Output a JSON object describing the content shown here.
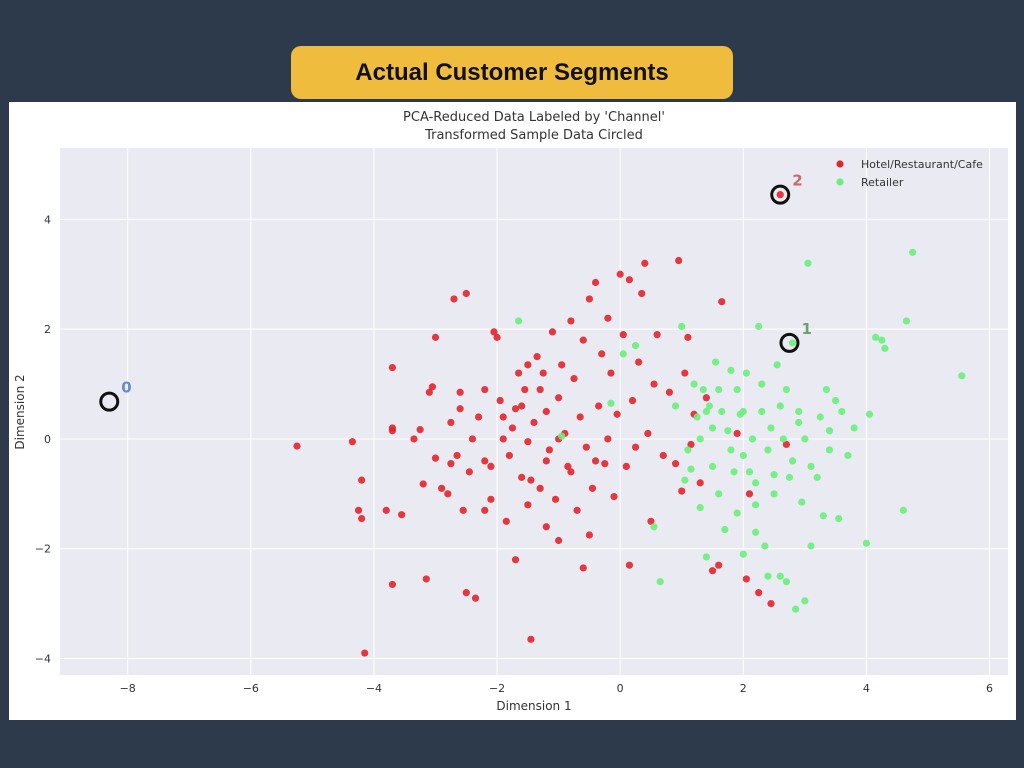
{
  "slide": {
    "banner_title": "Actual Customer Segments"
  },
  "chart_data": {
    "type": "scatter",
    "title": "PCA-Reduced Data Labeled by 'Channel'",
    "subtitle": "Transformed Sample Data Circled",
    "xlabel": "Dimension 1",
    "ylabel": "Dimension 2",
    "xlim": [
      -9.1,
      6.3
    ],
    "ylim": [
      -4.3,
      5.3
    ],
    "xticks": [
      -8,
      -6,
      -4,
      -2,
      0,
      2,
      4,
      6
    ],
    "yticks": [
      -4,
      -2,
      0,
      2,
      4
    ],
    "xtick_labels": [
      "−8",
      "−6",
      "−4",
      "−2",
      "0",
      "2",
      "4",
      "6"
    ],
    "ytick_labels": [
      "−4",
      "−2",
      "0",
      "2",
      "4"
    ],
    "grid": true,
    "legend_position": "top-right",
    "colors": {
      "plot_bg": "#eaeaf2",
      "grid": "#ffffff",
      "hotel": "#e3242b",
      "retailer": "#69ef7b",
      "circle": "#111111",
      "label0": "#6a8cc7",
      "label1": "#6f9f6f",
      "label2": "#c86a6a"
    },
    "series": [
      {
        "name": "Hotel/Restaurant/Cafe",
        "color": "#e3242b",
        "points": [
          [
            -5.25,
            -0.13
          ],
          [
            -4.35,
            -0.05
          ],
          [
            -4.25,
            -1.3
          ],
          [
            -4.2,
            -0.75
          ],
          [
            -4.2,
            -1.45
          ],
          [
            -4.15,
            -3.9
          ],
          [
            -3.8,
            -1.3
          ],
          [
            -3.7,
            1.3
          ],
          [
            -3.7,
            0.2
          ],
          [
            -3.7,
            0.15
          ],
          [
            -3.7,
            -2.65
          ],
          [
            -3.55,
            -1.38
          ],
          [
            -3.35,
            0.0
          ],
          [
            -3.25,
            0.17
          ],
          [
            -3.2,
            -0.82
          ],
          [
            -3.15,
            -2.55
          ],
          [
            -3.1,
            0.85
          ],
          [
            -3.05,
            0.95
          ],
          [
            -3.0,
            1.85
          ],
          [
            -2.9,
            -0.9
          ],
          [
            -2.8,
            -1.0
          ],
          [
            -2.75,
            -0.45
          ],
          [
            -2.75,
            0.3
          ],
          [
            -2.7,
            2.55
          ],
          [
            -2.65,
            -0.3
          ],
          [
            -2.6,
            0.85
          ],
          [
            -2.55,
            -1.3
          ],
          [
            -2.5,
            -2.8
          ],
          [
            -2.5,
            2.65
          ],
          [
            -2.45,
            -0.6
          ],
          [
            -2.4,
            0.0
          ],
          [
            -2.35,
            -2.9
          ],
          [
            -2.3,
            0.4
          ],
          [
            -2.2,
            0.9
          ],
          [
            -2.2,
            -1.3
          ],
          [
            -2.1,
            -0.5
          ],
          [
            -2.05,
            1.95
          ],
          [
            -2.0,
            1.85
          ],
          [
            -1.95,
            0.7
          ],
          [
            -1.9,
            0.0
          ],
          [
            -1.85,
            -1.5
          ],
          [
            -1.8,
            -0.3
          ],
          [
            -1.75,
            0.2
          ],
          [
            -1.7,
            0.55
          ],
          [
            -1.65,
            1.2
          ],
          [
            -1.6,
            0.6
          ],
          [
            -1.55,
            0.9
          ],
          [
            -1.5,
            -0.05
          ],
          [
            -1.5,
            1.35
          ],
          [
            -1.45,
            -0.75
          ],
          [
            -1.45,
            -3.65
          ],
          [
            -1.4,
            0.3
          ],
          [
            -1.35,
            1.5
          ],
          [
            -1.3,
            -0.9
          ],
          [
            -1.25,
            1.2
          ],
          [
            -1.2,
            0.5
          ],
          [
            -1.15,
            -0.2
          ],
          [
            -1.1,
            1.95
          ],
          [
            -1.05,
            -1.1
          ],
          [
            -1.0,
            0.75
          ],
          [
            -0.95,
            1.35
          ],
          [
            -0.9,
            0.1
          ],
          [
            -0.85,
            -0.5
          ],
          [
            -0.8,
            2.15
          ],
          [
            -0.75,
            1.1
          ],
          [
            -0.7,
            -1.3
          ],
          [
            -0.65,
            0.4
          ],
          [
            -0.6,
            1.8
          ],
          [
            -0.55,
            -0.15
          ],
          [
            -0.5,
            2.55
          ],
          [
            -0.45,
            -0.9
          ],
          [
            -0.4,
            2.85
          ],
          [
            -0.35,
            0.6
          ],
          [
            -0.3,
            1.55
          ],
          [
            -0.25,
            -0.45
          ],
          [
            -0.2,
            2.2
          ],
          [
            -0.15,
            1.2
          ],
          [
            -0.1,
            -1.05
          ],
          [
            -0.05,
            0.45
          ],
          [
            0.0,
            3.0
          ],
          [
            0.05,
            1.9
          ],
          [
            0.1,
            -0.5
          ],
          [
            0.15,
            2.9
          ],
          [
            0.2,
            0.7
          ],
          [
            0.25,
            -0.15
          ],
          [
            0.3,
            1.4
          ],
          [
            0.35,
            2.65
          ],
          [
            0.4,
            3.2
          ],
          [
            0.45,
            0.1
          ],
          [
            0.5,
            -1.5
          ],
          [
            0.55,
            1.0
          ],
          [
            0.6,
            1.9
          ],
          [
            0.7,
            -0.3
          ],
          [
            0.8,
            0.85
          ],
          [
            0.9,
            -0.45
          ],
          [
            0.95,
            3.25
          ],
          [
            1.0,
            -0.95
          ],
          [
            1.05,
            1.2
          ],
          [
            1.1,
            1.85
          ],
          [
            1.15,
            -0.1
          ],
          [
            1.2,
            0.45
          ],
          [
            1.3,
            -0.8
          ],
          [
            1.4,
            0.75
          ],
          [
            1.5,
            -2.4
          ],
          [
            1.6,
            -2.3
          ],
          [
            1.65,
            2.5
          ],
          [
            1.9,
            0.1
          ],
          [
            2.05,
            -2.55
          ],
          [
            2.1,
            -1.0
          ],
          [
            2.25,
            -2.8
          ],
          [
            2.45,
            -3.0
          ],
          [
            2.6,
            4.45
          ],
          [
            2.7,
            -0.1
          ],
          [
            -0.2,
            0.0
          ],
          [
            -1.0,
            0.0
          ],
          [
            -2.2,
            -0.4
          ],
          [
            -1.6,
            -0.7
          ],
          [
            -0.8,
            -0.6
          ],
          [
            -1.2,
            -0.4
          ],
          [
            -1.9,
            0.4
          ],
          [
            -0.4,
            -0.4
          ],
          [
            -1.3,
            0.9
          ],
          [
            -2.6,
            0.55
          ],
          [
            -1.7,
            -2.2
          ],
          [
            -0.6,
            -2.35
          ],
          [
            0.15,
            -2.3
          ],
          [
            -1.2,
            -1.6
          ],
          [
            -0.5,
            -1.75
          ],
          [
            -2.1,
            -1.1
          ],
          [
            -1.0,
            -1.85
          ],
          [
            -3.0,
            -0.35
          ],
          [
            -1.5,
            -1.2
          ]
        ]
      },
      {
        "name": "Retailer",
        "color": "#69ef7b",
        "points": [
          [
            -1.65,
            2.15
          ],
          [
            -0.95,
            0.05
          ],
          [
            -0.15,
            0.65
          ],
          [
            0.05,
            1.55
          ],
          [
            0.25,
            1.7
          ],
          [
            0.55,
            -1.6
          ],
          [
            0.65,
            -2.6
          ],
          [
            0.9,
            0.6
          ],
          [
            1.0,
            2.05
          ],
          [
            1.05,
            -0.75
          ],
          [
            1.1,
            -0.2
          ],
          [
            1.15,
            -0.55
          ],
          [
            1.2,
            1.0
          ],
          [
            1.25,
            0.4
          ],
          [
            1.3,
            -1.25
          ],
          [
            1.35,
            0.9
          ],
          [
            1.4,
            -2.15
          ],
          [
            1.45,
            0.6
          ],
          [
            1.5,
            -0.5
          ],
          [
            1.55,
            1.4
          ],
          [
            1.6,
            0.9
          ],
          [
            1.65,
            0.5
          ],
          [
            1.7,
            -1.65
          ],
          [
            1.75,
            0.15
          ],
          [
            1.8,
            1.25
          ],
          [
            1.85,
            -0.6
          ],
          [
            1.9,
            -1.35
          ],
          [
            1.95,
            0.45
          ],
          [
            2.0,
            -2.1
          ],
          [
            2.05,
            1.2
          ],
          [
            2.1,
            -0.6
          ],
          [
            2.15,
            0.0
          ],
          [
            2.2,
            -1.7
          ],
          [
            2.25,
            2.05
          ],
          [
            2.3,
            0.5
          ],
          [
            2.35,
            -1.95
          ],
          [
            2.4,
            -2.5
          ],
          [
            2.45,
            0.2
          ],
          [
            2.5,
            -0.65
          ],
          [
            2.55,
            1.35
          ],
          [
            2.6,
            -2.5
          ],
          [
            2.65,
            0.0
          ],
          [
            2.7,
            -2.6
          ],
          [
            2.75,
            -0.7
          ],
          [
            2.8,
            1.75
          ],
          [
            2.85,
            -3.1
          ],
          [
            2.9,
            0.3
          ],
          [
            2.95,
            -1.15
          ],
          [
            3.0,
            -2.95
          ],
          [
            3.05,
            3.2
          ],
          [
            3.1,
            -1.95
          ],
          [
            3.2,
            -0.7
          ],
          [
            3.25,
            0.4
          ],
          [
            3.3,
            -1.4
          ],
          [
            3.35,
            0.9
          ],
          [
            3.4,
            0.15
          ],
          [
            3.5,
            0.7
          ],
          [
            3.55,
            -1.45
          ],
          [
            3.6,
            0.5
          ],
          [
            3.7,
            -0.3
          ],
          [
            3.8,
            0.2
          ],
          [
            4.0,
            -1.9
          ],
          [
            4.05,
            0.45
          ],
          [
            4.15,
            1.85
          ],
          [
            4.25,
            1.8
          ],
          [
            4.3,
            1.65
          ],
          [
            4.6,
            -1.3
          ],
          [
            4.65,
            2.15
          ],
          [
            4.75,
            3.4
          ],
          [
            5.55,
            1.15
          ],
          [
            1.5,
            0.2
          ],
          [
            2.0,
            0.5
          ],
          [
            2.4,
            -0.2
          ],
          [
            1.8,
            -0.2
          ],
          [
            2.2,
            -0.8
          ],
          [
            2.6,
            0.6
          ],
          [
            3.0,
            0.0
          ],
          [
            1.3,
            0.0
          ],
          [
            2.8,
            -0.4
          ],
          [
            2.2,
            -1.2
          ],
          [
            1.9,
            0.9
          ],
          [
            2.7,
            0.9
          ],
          [
            3.1,
            -0.5
          ],
          [
            2.5,
            -1.0
          ],
          [
            1.6,
            -1.0
          ],
          [
            2.3,
            1.0
          ],
          [
            3.4,
            -0.2
          ],
          [
            1.4,
            0.5
          ],
          [
            2.0,
            -0.3
          ],
          [
            2.9,
            0.5
          ]
        ]
      }
    ],
    "circled_samples": [
      {
        "label": "0",
        "x": -8.3,
        "y": 0.68
      },
      {
        "label": "1",
        "x": 2.75,
        "y": 1.75
      },
      {
        "label": "2",
        "x": 2.6,
        "y": 4.45
      }
    ]
  }
}
